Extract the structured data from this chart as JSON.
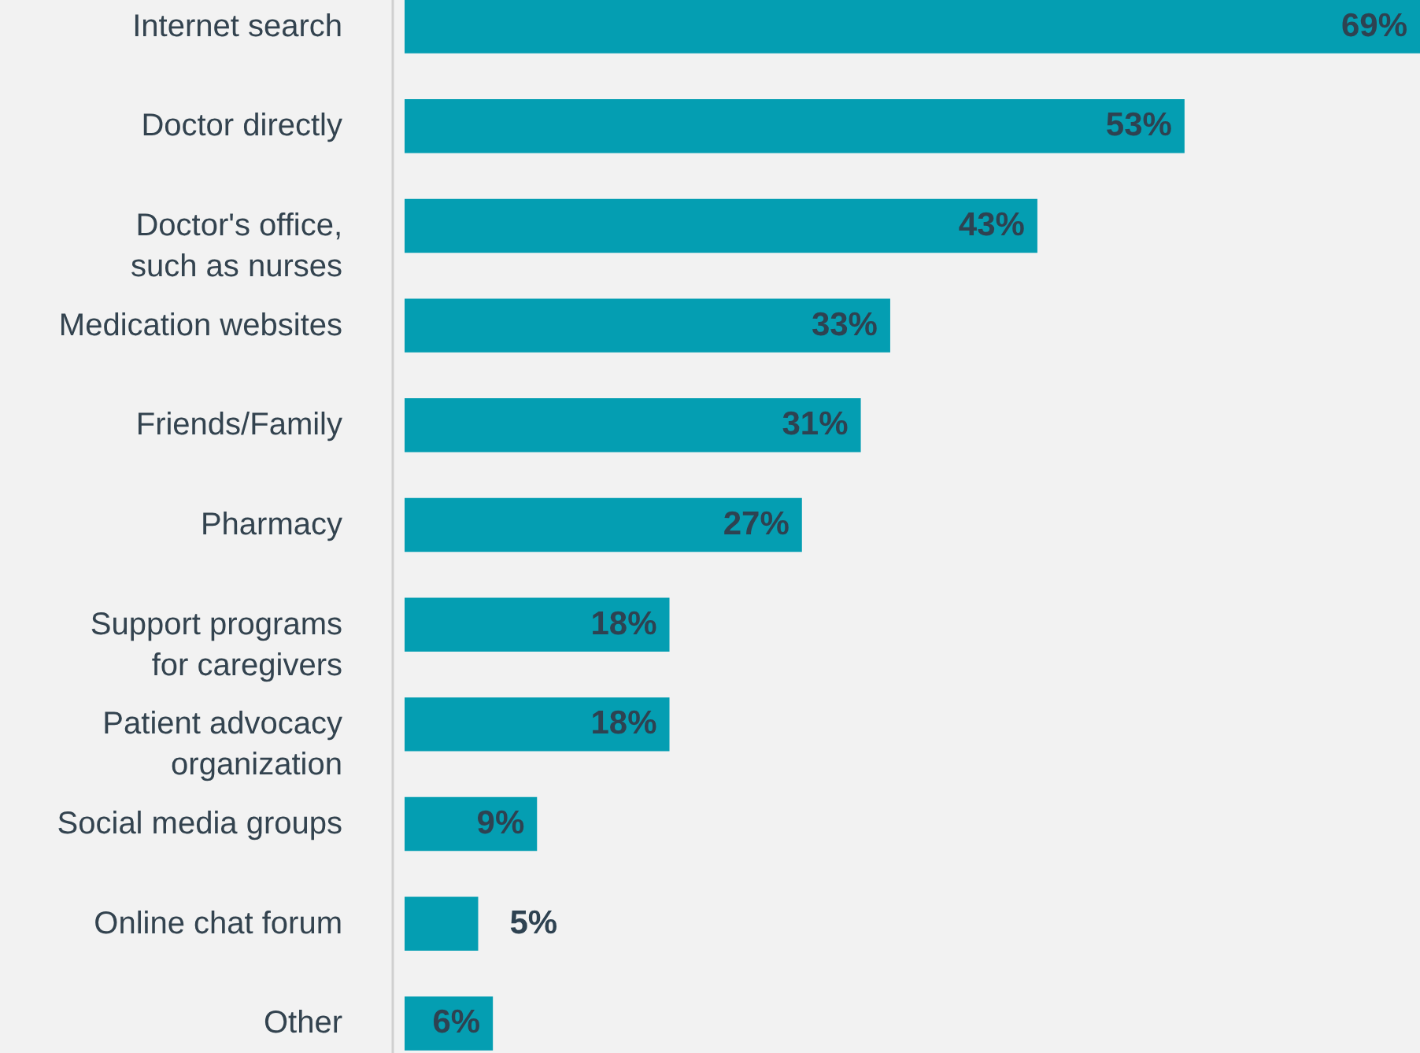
{
  "chart_data": {
    "type": "bar",
    "orientation": "horizontal",
    "categories": [
      "Internet search",
      "Doctor directly",
      "Doctor's office,\nsuch as nurses",
      "Medication websites",
      "Friends/Family",
      "Pharmacy",
      "Support programs\nfor caregivers",
      "Patient advocacy\norganization",
      "Social media groups",
      "Online chat forum",
      "Other"
    ],
    "values": [
      69,
      53,
      43,
      33,
      31,
      27,
      18,
      18,
      9,
      5,
      6
    ],
    "value_labels": [
      "69%",
      "53%",
      "43%",
      "33%",
      "31%",
      "27%",
      "18%",
      "18%",
      "9%",
      "5%",
      "6%"
    ],
    "color": "#049eb2"
  }
}
